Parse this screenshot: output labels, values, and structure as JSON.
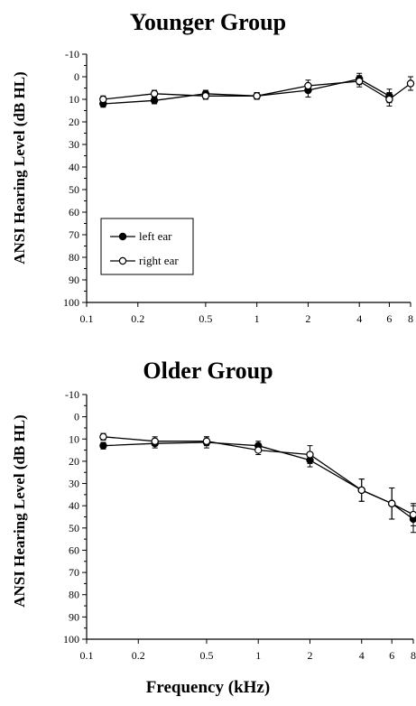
{
  "xlabel": "Frequency (kHz)",
  "chart_data": [
    {
      "type": "line",
      "title": "Younger Group",
      "ylabel": "ANSI Hearing Level (dB HL)",
      "x_scale": "log",
      "xlim": [
        0.1,
        8
      ],
      "ylim": [
        -10,
        100
      ],
      "y_inverted": true,
      "x_ticks": [
        0.1,
        0.2,
        0.5,
        1,
        2,
        4,
        6,
        8
      ],
      "x_tick_labels": [
        "0.1",
        "0.2",
        "0.5",
        "1",
        "2",
        "4",
        "6",
        "8"
      ],
      "y_ticks": [
        -10,
        0,
        10,
        20,
        30,
        40,
        50,
        60,
        70,
        80,
        90,
        100
      ],
      "y_tick_labels": [
        "-10",
        "0",
        "10",
        "20",
        "30",
        "40",
        "50",
        "60",
        "70",
        "80",
        "90",
        "100"
      ],
      "legend": {
        "position": "lower-left",
        "entries": [
          "left ear",
          "right ear"
        ]
      },
      "series": [
        {
          "name": "left ear",
          "marker": "filled-circle",
          "x": [
            0.125,
            0.25,
            0.5,
            1,
            2,
            4,
            6
          ],
          "y": [
            12,
            10.5,
            7.5,
            8.5,
            6,
            1,
            8.5
          ],
          "err": [
            1.5,
            1.5,
            1.5,
            1.5,
            3,
            2.5,
            3
          ]
        },
        {
          "name": "right ear",
          "marker": "open-circle",
          "x": [
            0.125,
            0.25,
            0.5,
            1,
            2,
            4,
            6,
            8
          ],
          "y": [
            10,
            7.5,
            8.5,
            8.5,
            4,
            2,
            10,
            3
          ],
          "err": [
            1.5,
            1.5,
            1.5,
            1.5,
            2.5,
            2.5,
            3,
            3
          ]
        }
      ]
    },
    {
      "type": "line",
      "title": "Older Group",
      "ylabel": "ANSI Hearing Level (dB HL)",
      "x_scale": "log",
      "xlim": [
        0.1,
        8
      ],
      "ylim": [
        -10,
        100
      ],
      "y_inverted": true,
      "x_ticks": [
        0.1,
        0.2,
        0.5,
        1,
        2,
        4,
        6,
        8
      ],
      "x_tick_labels": [
        "0.1",
        "0.2",
        "0.5",
        "1",
        "2",
        "4",
        "6",
        "8"
      ],
      "y_ticks": [
        -10,
        0,
        10,
        20,
        30,
        40,
        50,
        60,
        70,
        80,
        90,
        100
      ],
      "y_tick_labels": [
        "-10",
        "0",
        "10",
        "20",
        "30",
        "40",
        "50",
        "60",
        "70",
        "80",
        "90",
        "100"
      ],
      "series": [
        {
          "name": "left ear",
          "marker": "filled-circle",
          "x": [
            0.125,
            0.25,
            0.5,
            1,
            2,
            4,
            6,
            8
          ],
          "y": [
            13,
            12,
            11.5,
            13,
            19.5,
            33,
            39,
            46
          ],
          "err": [
            1.5,
            2,
            2.5,
            2,
            3,
            5,
            7,
            6
          ]
        },
        {
          "name": "right ear",
          "marker": "open-circle",
          "x": [
            0.125,
            0.25,
            0.5,
            1,
            2,
            4,
            6,
            8
          ],
          "y": [
            9,
            11,
            11,
            15,
            17,
            33,
            39,
            44
          ],
          "err": [
            1.5,
            2,
            2,
            2,
            4,
            5,
            7,
            5
          ]
        }
      ]
    }
  ]
}
